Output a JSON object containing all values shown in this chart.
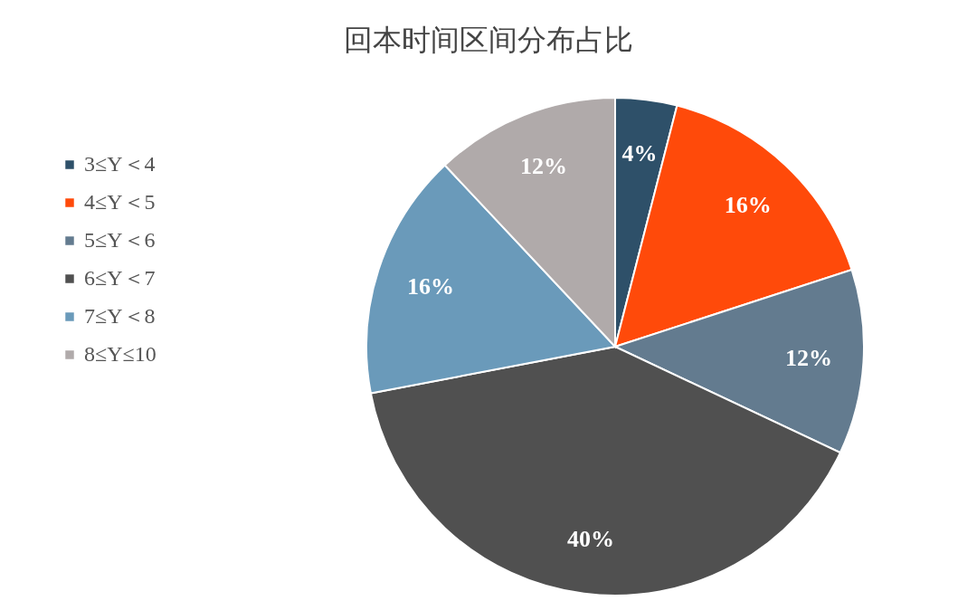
{
  "chart_data": {
    "type": "pie",
    "title": "回本时间区间分布占比",
    "categories": [
      "3≤Y＜4",
      "4≤Y＜5",
      "5≤Y＜6",
      "6≤Y＜7",
      "7≤Y＜8",
      "8≤Y≤10"
    ],
    "values": [
      4,
      16,
      12,
      40,
      16,
      12
    ],
    "value_labels": [
      "4%",
      "16%",
      "12%",
      "40%",
      "16%",
      "12%"
    ],
    "colors": [
      "#2e5069",
      "#ff4a0a",
      "#637b8f",
      "#505050",
      "#6a9aba",
      "#b0aaaa"
    ],
    "legend": "left"
  }
}
